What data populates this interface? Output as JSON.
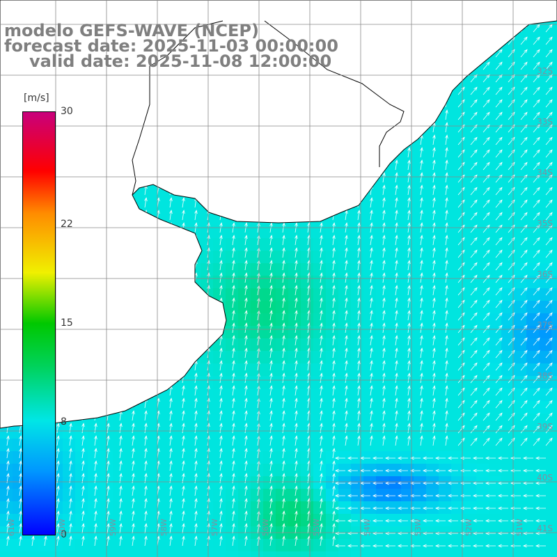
{
  "title": {
    "line1": "modelo GEFS-WAVE (NCEP)",
    "line2": "forecast date: 2025-11-03 00:00:00",
    "line3": "valid date: 2025-11-08 12:00:00"
  },
  "colorbar": {
    "unit": "[m/s]",
    "ticks": [
      "30",
      "22",
      "15",
      "8",
      "0"
    ],
    "tick_values": [
      30,
      22,
      15,
      8,
      0
    ],
    "range": [
      0,
      30
    ],
    "colors": [
      "#0000ff",
      "#00c8ff",
      "#00e6e6",
      "#00d200",
      "#f0f000",
      "#ff8c00",
      "#ff0000",
      "#c8007d"
    ]
  },
  "map": {
    "lat_labels": [
      "32S",
      "33S",
      "34S",
      "35S",
      "36S",
      "37S",
      "38S",
      "39S",
      "40S",
      "41S"
    ],
    "lon_labels": [
      "61W",
      "60W",
      "59W",
      "58W",
      "57W",
      "56W",
      "55W",
      "54W",
      "53W",
      "52W",
      "51W"
    ],
    "land_color": "#ffffff",
    "grid_color": "#888888",
    "arrow_color": "#ffffff"
  }
}
